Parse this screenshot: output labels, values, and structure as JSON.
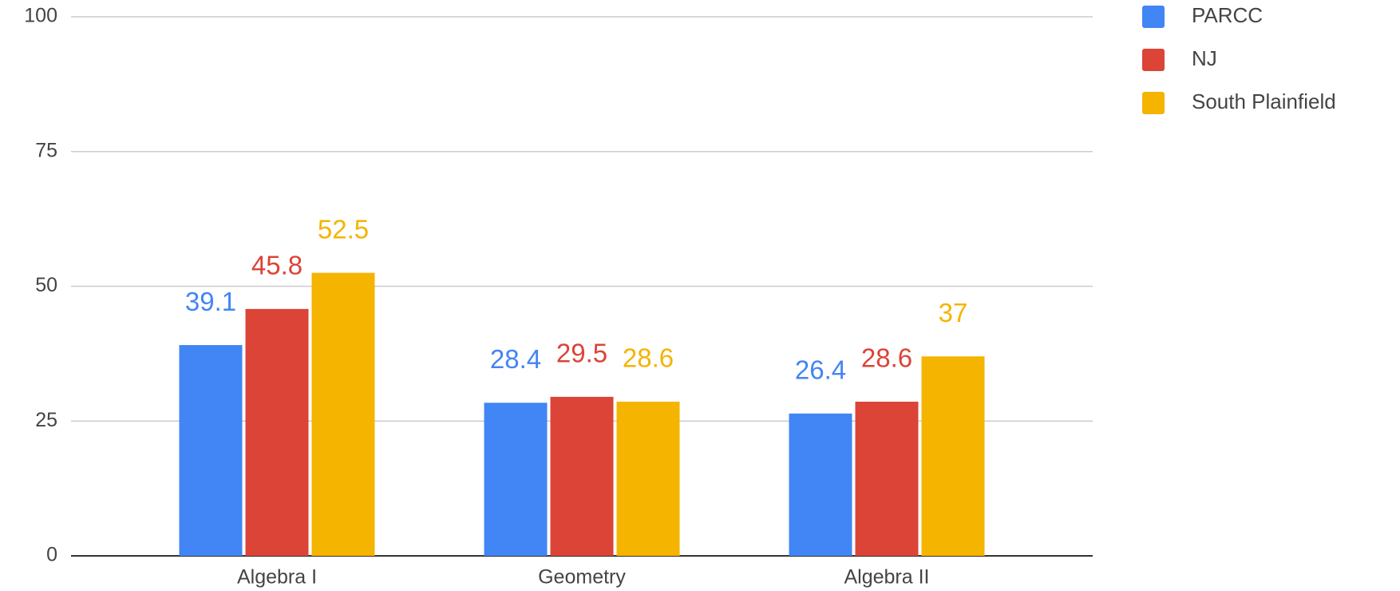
{
  "chart_data": {
    "type": "bar",
    "categories": [
      "Algebra I",
      "Geometry",
      "Algebra II"
    ],
    "series": [
      {
        "name": "PARCC",
        "color": "#4285f4",
        "values": [
          39.1,
          28.4,
          26.4
        ]
      },
      {
        "name": "NJ",
        "color": "#db4437",
        "values": [
          45.8,
          29.5,
          28.6
        ]
      },
      {
        "name": "South Plainfield",
        "color": "#f4b400",
        "values": [
          52.5,
          28.6,
          37
        ]
      }
    ],
    "ylim": [
      0,
      100
    ],
    "yticks": [
      0,
      25,
      50,
      75,
      100
    ],
    "grid": true,
    "legend": "right"
  }
}
